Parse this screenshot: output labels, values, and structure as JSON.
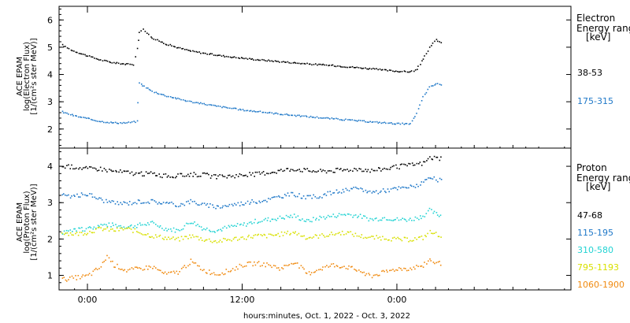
{
  "chart_data": [
    {
      "type": "scatter",
      "title": "",
      "ylabel": [
        "ACE EPAM",
        "log(Electron Flux)",
        "[1/(cm²s ster MeV)]"
      ],
      "ylim": [
        1.3,
        6.5
      ],
      "yticks": [
        2,
        3,
        4,
        5,
        6
      ],
      "legend_title": [
        "Electron",
        "Energy range",
        "[keV]"
      ],
      "series": [
        {
          "name": "38-53",
          "color": "#000000",
          "points": [
            [
              -2.0,
              5.1
            ],
            [
              -1.2,
              4.9
            ],
            [
              0.0,
              4.7
            ],
            [
              1.0,
              4.55
            ],
            [
              2.0,
              4.45
            ],
            [
              3.0,
              4.4
            ],
            [
              3.5,
              4.38
            ],
            [
              3.8,
              5.0
            ],
            [
              4.0,
              5.55
            ],
            [
              4.3,
              5.7
            ],
            [
              4.6,
              5.55
            ],
            [
              5.0,
              5.35
            ],
            [
              6.0,
              5.15
            ],
            [
              7.0,
              5.0
            ],
            [
              8.0,
              4.88
            ],
            [
              9.0,
              4.8
            ],
            [
              10.0,
              4.73
            ],
            [
              11.0,
              4.67
            ],
            [
              12.0,
              4.62
            ],
            [
              13.0,
              4.57
            ],
            [
              14.0,
              4.53
            ],
            [
              15.0,
              4.49
            ],
            [
              16.0,
              4.45
            ],
            [
              17.0,
              4.41
            ],
            [
              18.0,
              4.38
            ],
            [
              19.0,
              4.35
            ],
            [
              20.0,
              4.31
            ],
            [
              21.0,
              4.27
            ],
            [
              22.0,
              4.23
            ],
            [
              23.0,
              4.18
            ],
            [
              24.0,
              4.14
            ],
            [
              25.0,
              4.12
            ],
            [
              25.5,
              4.2
            ],
            [
              26.0,
              4.6
            ],
            [
              26.5,
              5.0
            ],
            [
              27.0,
              5.3
            ],
            [
              27.5,
              5.15
            ]
          ]
        },
        {
          "name": "175-315",
          "color": "#1f78c8",
          "points": [
            [
              -2.0,
              2.65
            ],
            [
              -1.0,
              2.5
            ],
            [
              0.0,
              2.4
            ],
            [
              1.0,
              2.3
            ],
            [
              2.0,
              2.25
            ],
            [
              3.0,
              2.25
            ],
            [
              3.8,
              2.3
            ],
            [
              4.0,
              3.7
            ],
            [
              4.5,
              3.55
            ],
            [
              5.0,
              3.4
            ],
            [
              6.0,
              3.25
            ],
            [
              7.0,
              3.13
            ],
            [
              8.0,
              3.02
            ],
            [
              9.0,
              2.94
            ],
            [
              10.0,
              2.86
            ],
            [
              11.0,
              2.79
            ],
            [
              12.0,
              2.72
            ],
            [
              13.0,
              2.67
            ],
            [
              14.0,
              2.62
            ],
            [
              15.0,
              2.57
            ],
            [
              16.0,
              2.52
            ],
            [
              17.0,
              2.48
            ],
            [
              18.0,
              2.44
            ],
            [
              19.0,
              2.4
            ],
            [
              20.0,
              2.36
            ],
            [
              21.0,
              2.32
            ],
            [
              22.0,
              2.28
            ],
            [
              23.0,
              2.25
            ],
            [
              24.0,
              2.22
            ],
            [
              25.0,
              2.2
            ],
            [
              25.5,
              2.6
            ],
            [
              26.0,
              3.2
            ],
            [
              26.5,
              3.55
            ],
            [
              27.0,
              3.68
            ],
            [
              27.5,
              3.65
            ]
          ]
        }
      ]
    },
    {
      "type": "scatter",
      "title": "",
      "xlabel": "hours:minutes, Oct.  1, 2022 - Oct.  3, 2022",
      "xticks": [
        0,
        12,
        24
      ],
      "xtick_labels": [
        "0:00",
        "12:00",
        "0:00"
      ],
      "ylabel": [
        "ACE EPAM",
        "log(Proton Flux)",
        "[1/(cm²s ster MeV)]"
      ],
      "ylim": [
        0.6,
        4.5
      ],
      "yticks": [
        1,
        2,
        3,
        4
      ],
      "legend_title": [
        "Proton",
        "Energy range",
        "[keV]"
      ],
      "series": [
        {
          "name": "47-68",
          "color": "#000000",
          "points": [
            [
              -2.0,
              4.0
            ],
            [
              -1.0,
              4.0
            ],
            [
              0.0,
              3.95
            ],
            [
              1.0,
              3.95
            ],
            [
              2.0,
              3.88
            ],
            [
              3.0,
              3.85
            ],
            [
              4.0,
              3.8
            ],
            [
              5.0,
              3.82
            ],
            [
              6.0,
              3.75
            ],
            [
              7.0,
              3.75
            ],
            [
              8.0,
              3.8
            ],
            [
              9.0,
              3.78
            ],
            [
              10.0,
              3.72
            ],
            [
              11.0,
              3.75
            ],
            [
              12.0,
              3.78
            ],
            [
              13.0,
              3.8
            ],
            [
              14.0,
              3.85
            ],
            [
              15.0,
              3.9
            ],
            [
              16.0,
              3.95
            ],
            [
              17.0,
              3.9
            ],
            [
              18.0,
              3.88
            ],
            [
              19.0,
              3.9
            ],
            [
              20.0,
              3.92
            ],
            [
              21.0,
              3.95
            ],
            [
              22.0,
              3.9
            ],
            [
              23.0,
              3.95
            ],
            [
              24.0,
              4.0
            ],
            [
              25.0,
              4.05
            ],
            [
              26.0,
              4.1
            ],
            [
              26.5,
              4.25
            ],
            [
              27.0,
              4.25
            ],
            [
              27.5,
              4.2
            ]
          ]
        },
        {
          "name": "115-195",
          "color": "#1f78c8",
          "points": [
            [
              -2.0,
              3.2
            ],
            [
              -1.0,
              3.2
            ],
            [
              0.0,
              3.25
            ],
            [
              1.0,
              3.1
            ],
            [
              2.0,
              3.0
            ],
            [
              3.0,
              3.0
            ],
            [
              4.0,
              3.05
            ],
            [
              5.0,
              3.05
            ],
            [
              6.0,
              3.0
            ],
            [
              7.0,
              2.95
            ],
            [
              8.0,
              3.05
            ],
            [
              9.0,
              2.95
            ],
            [
              10.0,
              2.9
            ],
            [
              11.0,
              2.95
            ],
            [
              12.0,
              3.0
            ],
            [
              13.0,
              3.05
            ],
            [
              14.0,
              3.1
            ],
            [
              15.0,
              3.2
            ],
            [
              16.0,
              3.25
            ],
            [
              17.0,
              3.15
            ],
            [
              18.0,
              3.2
            ],
            [
              19.0,
              3.3
            ],
            [
              20.0,
              3.35
            ],
            [
              21.0,
              3.4
            ],
            [
              22.0,
              3.3
            ],
            [
              23.0,
              3.35
            ],
            [
              24.0,
              3.4
            ],
            [
              25.0,
              3.45
            ],
            [
              26.0,
              3.55
            ],
            [
              26.5,
              3.7
            ],
            [
              27.0,
              3.65
            ],
            [
              27.5,
              3.6
            ]
          ]
        },
        {
          "name": "310-580",
          "color": "#22d3d3",
          "points": [
            [
              -2.0,
              2.2
            ],
            [
              -1.0,
              2.25
            ],
            [
              0.0,
              2.3
            ],
            [
              1.0,
              2.4
            ],
            [
              2.0,
              2.4
            ],
            [
              3.0,
              2.35
            ],
            [
              4.0,
              2.4
            ],
            [
              5.0,
              2.45
            ],
            [
              6.0,
              2.3
            ],
            [
              7.0,
              2.25
            ],
            [
              8.0,
              2.5
            ],
            [
              9.0,
              2.3
            ],
            [
              10.0,
              2.25
            ],
            [
              11.0,
              2.35
            ],
            [
              12.0,
              2.4
            ],
            [
              13.0,
              2.5
            ],
            [
              14.0,
              2.55
            ],
            [
              15.0,
              2.6
            ],
            [
              16.0,
              2.65
            ],
            [
              17.0,
              2.5
            ],
            [
              18.0,
              2.6
            ],
            [
              19.0,
              2.65
            ],
            [
              20.0,
              2.7
            ],
            [
              21.0,
              2.65
            ],
            [
              22.0,
              2.55
            ],
            [
              23.0,
              2.6
            ],
            [
              24.0,
              2.55
            ],
            [
              25.0,
              2.55
            ],
            [
              26.0,
              2.65
            ],
            [
              26.5,
              2.8
            ],
            [
              27.0,
              2.7
            ],
            [
              27.5,
              2.65
            ]
          ]
        },
        {
          "name": "795-1193",
          "color": "#d8e000",
          "points": [
            [
              -2.0,
              2.2
            ],
            [
              -1.0,
              2.15
            ],
            [
              0.0,
              2.2
            ],
            [
              1.0,
              2.3
            ],
            [
              2.0,
              2.25
            ],
            [
              3.0,
              2.3
            ],
            [
              4.0,
              2.2
            ],
            [
              5.0,
              2.1
            ],
            [
              6.0,
              2.05
            ],
            [
              7.0,
              2.0
            ],
            [
              8.0,
              2.1
            ],
            [
              9.0,
              2.0
            ],
            [
              10.0,
              1.95
            ],
            [
              11.0,
              2.0
            ],
            [
              12.0,
              2.05
            ],
            [
              13.0,
              2.1
            ],
            [
              14.0,
              2.1
            ],
            [
              15.0,
              2.15
            ],
            [
              16.0,
              2.2
            ],
            [
              17.0,
              2.05
            ],
            [
              18.0,
              2.1
            ],
            [
              19.0,
              2.15
            ],
            [
              20.0,
              2.2
            ],
            [
              21.0,
              2.1
            ],
            [
              22.0,
              2.05
            ],
            [
              23.0,
              2.05
            ],
            [
              24.0,
              2.0
            ],
            [
              25.0,
              2.0
            ],
            [
              26.0,
              2.05
            ],
            [
              26.5,
              2.2
            ],
            [
              27.0,
              2.15
            ],
            [
              27.5,
              2.1
            ]
          ]
        },
        {
          "name": "1060-1900",
          "color": "#f08a10",
          "points": [
            [
              -2.0,
              0.9
            ],
            [
              -1.0,
              0.95
            ],
            [
              0.0,
              1.0
            ],
            [
              1.0,
              1.25
            ],
            [
              1.5,
              1.55
            ],
            [
              2.0,
              1.3
            ],
            [
              3.0,
              1.15
            ],
            [
              4.0,
              1.2
            ],
            [
              5.0,
              1.25
            ],
            [
              6.0,
              1.05
            ],
            [
              7.0,
              1.1
            ],
            [
              8.0,
              1.4
            ],
            [
              9.0,
              1.15
            ],
            [
              10.0,
              1.05
            ],
            [
              11.0,
              1.15
            ],
            [
              12.0,
              1.3
            ],
            [
              13.0,
              1.35
            ],
            [
              14.0,
              1.3
            ],
            [
              15.0,
              1.2
            ],
            [
              16.0,
              1.4
            ],
            [
              17.0,
              1.05
            ],
            [
              18.0,
              1.2
            ],
            [
              19.0,
              1.3
            ],
            [
              20.0,
              1.25
            ],
            [
              21.0,
              1.15
            ],
            [
              22.0,
              1.0
            ],
            [
              23.0,
              1.1
            ],
            [
              24.0,
              1.2
            ],
            [
              25.0,
              1.2
            ],
            [
              26.0,
              1.3
            ],
            [
              26.5,
              1.45
            ],
            [
              27.0,
              1.35
            ],
            [
              27.5,
              1.35
            ]
          ]
        }
      ]
    }
  ],
  "xrange_hours": [
    -2.2,
    37.5
  ]
}
